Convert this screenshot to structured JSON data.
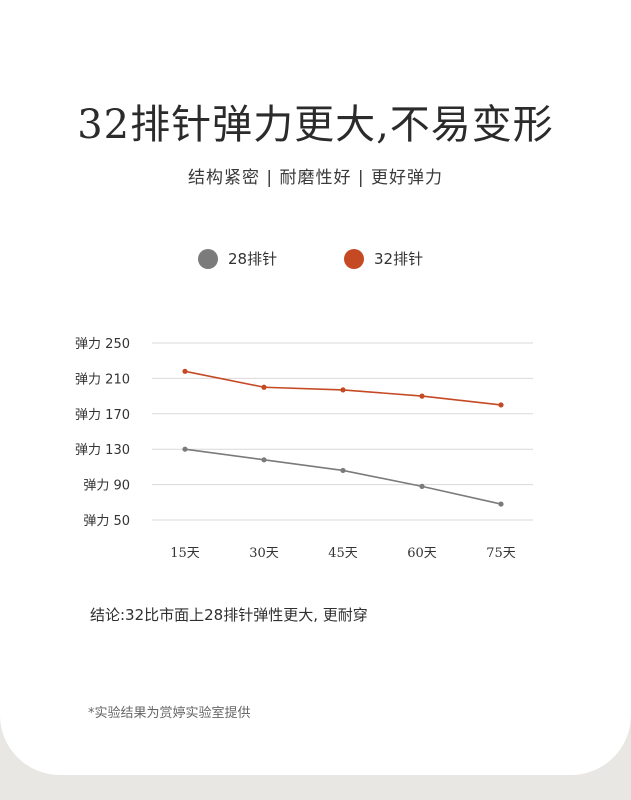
{
  "header": {
    "title": "32排针弹力更大,不易变形",
    "subtitle": "结构紧密 | 耐磨性好 | 更好弹力"
  },
  "colors": {
    "series_28": "#7b7b7b",
    "series_32": "#c54a24",
    "grid": "#d9d9d9"
  },
  "chart_data": {
    "type": "line",
    "categories": [
      "15天",
      "30天",
      "45天",
      "60天",
      "75天"
    ],
    "y_tick_labels": [
      "弹力 250",
      "弹力 210",
      "弹力 170",
      "弹力 130",
      "弹力 90",
      "弹力 50"
    ],
    "y_tick_values": [
      250,
      210,
      170,
      130,
      90,
      50
    ],
    "ylim": [
      50,
      250
    ],
    "grid": true,
    "legend_position": "top",
    "series": [
      {
        "name": "28排针",
        "values": [
          130,
          118,
          106,
          88,
          68
        ]
      },
      {
        "name": "32排针",
        "values": [
          218,
          200,
          197,
          190,
          180
        ]
      }
    ]
  },
  "footer": {
    "conclusion": "结论:32比市面上28排针弹性更大, 更耐穿",
    "footnote": "*实验结果为赏婷实验室提供"
  }
}
